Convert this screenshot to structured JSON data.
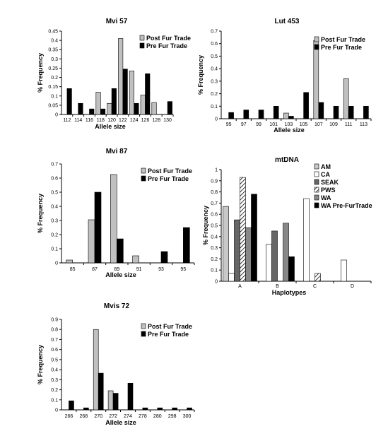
{
  "chart_data": [
    {
      "type": "bar",
      "title": "Mvi 57",
      "xlabel": "Allele size",
      "ylabel": "% Frequency",
      "ylim": [
        0,
        0.45
      ],
      "yticks": [
        "0",
        "0.05",
        "0.1",
        "0.15",
        "0.2",
        "0.25",
        "0.3",
        "0.35",
        "0.4",
        "0.45"
      ],
      "legend": "top-right",
      "categories": [
        "112",
        "114",
        "116",
        "118",
        "120",
        "122",
        "124",
        "126",
        "128",
        "130"
      ],
      "series": [
        {
          "name": "Post Fur Trade",
          "color": "#c0c0c0",
          "values": [
            0,
            0,
            0,
            0.12,
            0.06,
            0.41,
            0.235,
            0.105,
            0.065,
            0
          ]
        },
        {
          "name": "Pre Fur Trade",
          "color": "#000000",
          "values": [
            0.14,
            0.06,
            0.03,
            0.03,
            0.14,
            0.245,
            0.06,
            0.22,
            0,
            0.07
          ]
        }
      ]
    },
    {
      "type": "bar",
      "title": "Lut 453",
      "xlabel": "Allele size",
      "ylabel": "% Frequency",
      "ylim": [
        0,
        0.7
      ],
      "yticks": [
        "0",
        "0.1",
        "0.2",
        "0.3",
        "0.4",
        "0.5",
        "0.6",
        "0.7"
      ],
      "legend": "top-right",
      "categories": [
        "95",
        "97",
        "99",
        "101",
        "103",
        "105",
        "107",
        "109",
        "111",
        "113"
      ],
      "series": [
        {
          "name": "Post Fur Trade",
          "color": "#c0c0c0",
          "values": [
            0,
            0,
            0,
            0,
            0.045,
            0,
            0.625,
            0,
            0.32,
            0
          ]
        },
        {
          "name": "Pre Fur Trade",
          "color": "#000000",
          "values": [
            0.05,
            0.07,
            0.07,
            0.1,
            0.02,
            0.21,
            0.13,
            0.1,
            0.1,
            0.1
          ]
        }
      ]
    },
    {
      "type": "bar",
      "title": "Mvi 87",
      "xlabel": "Allele size",
      "ylabel": "% Frequency",
      "ylim": [
        0,
        0.7
      ],
      "yticks": [
        "0",
        "0.1",
        "0.2",
        "0.3",
        "0.4",
        "0.5",
        "0.6",
        "0.7"
      ],
      "legend": "top-right",
      "categories": [
        "85",
        "87",
        "89",
        "91",
        "93",
        "95"
      ],
      "series": [
        {
          "name": "Post Fur Trade",
          "color": "#c0c0c0",
          "values": [
            0.02,
            0.305,
            0.625,
            0.05,
            0,
            0
          ]
        },
        {
          "name": "Pre Fur Trade",
          "color": "#000000",
          "values": [
            0,
            0.5,
            0.17,
            0,
            0.08,
            0.25
          ]
        }
      ]
    },
    {
      "type": "bar",
      "title": "mtDNA",
      "xlabel": "Haplotypes",
      "ylabel": "% Frequency",
      "ylim": [
        0,
        1
      ],
      "yticks": [
        "0",
        "0.1",
        "0.2",
        "0.3",
        "0.4",
        "0.5",
        "0.6",
        "0.7",
        "0.8",
        "0.9",
        "1"
      ],
      "legend": "top-right",
      "categories": [
        "A",
        "B",
        "C",
        "D"
      ],
      "series": [
        {
          "name": "AM",
          "color": "#c8c8c8",
          "values": [
            0.67,
            0,
            0,
            0
          ]
        },
        {
          "name": "CA",
          "color": "#ffffff",
          "values": [
            0.07,
            0.33,
            0.74,
            0.19
          ]
        },
        {
          "name": "SEAK",
          "color": "#666666",
          "values": [
            0.55,
            0.45,
            0,
            0
          ]
        },
        {
          "name": "PWS",
          "color": "hatch",
          "values": [
            0.93,
            0,
            0.07,
            0
          ]
        },
        {
          "name": "WA",
          "color": "#888888",
          "values": [
            0.48,
            0.52,
            0,
            0
          ]
        },
        {
          "name": "WA Pre-FurTrade",
          "color": "#000000",
          "values": [
            0.78,
            0.22,
            0,
            0
          ]
        }
      ]
    },
    {
      "type": "bar",
      "title": "Mvis 72",
      "xlabel": "Allele size",
      "ylabel": "% Frequency",
      "ylim": [
        0,
        0.9
      ],
      "yticks": [
        "0",
        "0.1",
        "0.2",
        "0.3",
        "0.4",
        "0.5",
        "0.6",
        "0.7",
        "0.8",
        "0.9"
      ],
      "legend": "top-right",
      "categories": [
        "266",
        "268",
        "270",
        "272",
        "274",
        "278",
        "280",
        "298",
        "300"
      ],
      "series": [
        {
          "name": "Post Fur Trade",
          "color": "#c0c0c0",
          "values": [
            0,
            0,
            0.8,
            0.19,
            0,
            0,
            0,
            0,
            0
          ]
        },
        {
          "name": "Pre Fur Trade",
          "color": "#000000",
          "values": [
            0.09,
            0.02,
            0.365,
            0.165,
            0.265,
            0.02,
            0.02,
            0.02,
            0.02
          ]
        }
      ]
    }
  ]
}
